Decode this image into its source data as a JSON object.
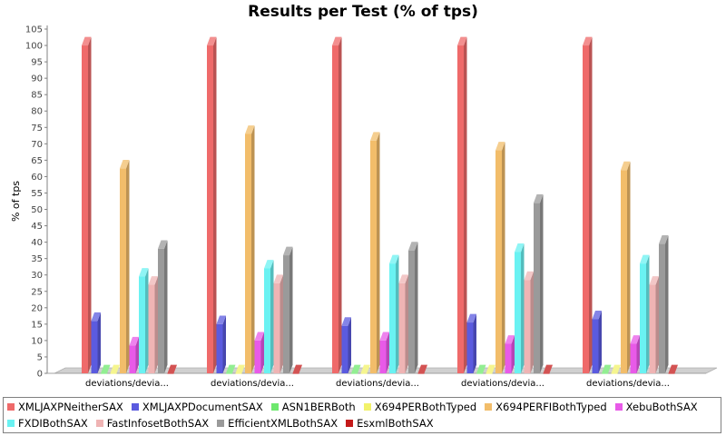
{
  "chart_data": {
    "type": "bar",
    "title": "Results per Test (% of tps)",
    "xlabel": "",
    "ylabel": "% of tps",
    "ylim": [
      0,
      105
    ],
    "ytick_step": 5,
    "grid": false,
    "legend_position": "bottom",
    "categories": [
      "deviations/devia...",
      "deviations/devia...",
      "deviations/devia...",
      "deviations/devia...",
      "deviations/devia..."
    ],
    "series": [
      {
        "name": "XMLJAXPNeitherSAX",
        "color": "#ef6a6a",
        "values": [
          100,
          100,
          100,
          100,
          100
        ]
      },
      {
        "name": "XMLJAXPDocumentSAX",
        "color": "#5b5bdf",
        "values": [
          16,
          15,
          14.5,
          15.5,
          16.5
        ]
      },
      {
        "name": "ASN1BERBoth",
        "color": "#6ee86e",
        "values": [
          0,
          0,
          0,
          0,
          0
        ]
      },
      {
        "name": "X694PERBothTyped",
        "color": "#f2f26a",
        "values": [
          0,
          0,
          0,
          0,
          0
        ]
      },
      {
        "name": "X694PERFIBothTyped",
        "color": "#f2bd6a",
        "values": [
          62.5,
          73,
          71,
          68,
          62
        ]
      },
      {
        "name": "XebuBothSAX",
        "color": "#e85ae8",
        "values": [
          8.5,
          10,
          10,
          9,
          9
        ]
      },
      {
        "name": "FXDIBothSAX",
        "color": "#6af2f2",
        "values": [
          29.5,
          32,
          33.5,
          37,
          33.5
        ]
      },
      {
        "name": "FastInfosetBothSAX",
        "color": "#efb4b4",
        "values": [
          27,
          27.5,
          27.5,
          28.5,
          27
        ]
      },
      {
        "name": "EfficientXMLBothSAX",
        "color": "#9a9a9a",
        "values": [
          38,
          36,
          37.5,
          52,
          39.5
        ]
      },
      {
        "name": "EsxmlBothSAX",
        "color": "#c41a1a",
        "values": [
          0,
          0,
          0,
          0,
          0
        ]
      }
    ]
  }
}
